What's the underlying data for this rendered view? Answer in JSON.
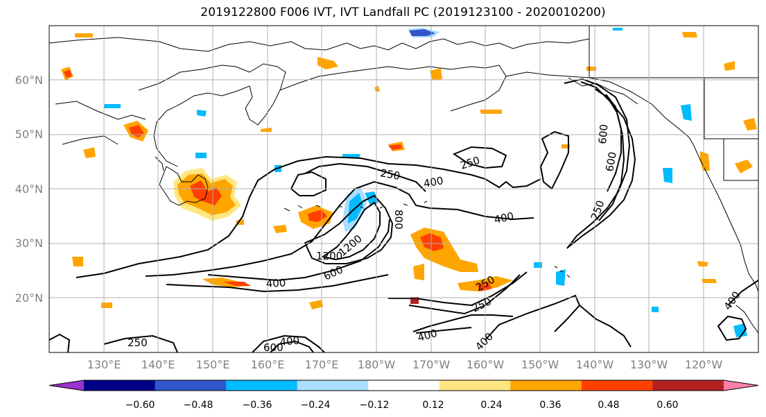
{
  "title": "2019122800 F006 IVT, IVT Landfall PC (2019123100 - 2020010200)",
  "lat_labels": [
    "60°N",
    "50°N",
    "40°N",
    "30°N",
    "20°N"
  ],
  "lon_labels": [
    "130°E",
    "140°E",
    "150°E",
    "160°E",
    "170°E",
    "180°W",
    "170°W",
    "160°W",
    "150°W",
    "140°W",
    "130°W",
    "120°W"
  ],
  "contour_labels": [
    "250",
    "250",
    "250",
    "250",
    "250",
    "250",
    "400",
    "400",
    "400",
    "400",
    "400",
    "400",
    "600",
    "600",
    "600",
    "800",
    "1200",
    "1200",
    "600",
    "400"
  ],
  "colorbar": {
    "tick_labels": [
      "−0.60",
      "−0.48",
      "−0.36",
      "−0.24",
      "−0.12",
      "0.12",
      "0.24",
      "0.36",
      "0.48",
      "0.60"
    ],
    "colors": [
      "#9933cc",
      "#000088",
      "#3355cc",
      "#00bbff",
      "#aaddff",
      "#ffffff",
      "#ffe680",
      "#ffa500",
      "#ff4000",
      "#b22222",
      "#ff80aa"
    ]
  }
}
